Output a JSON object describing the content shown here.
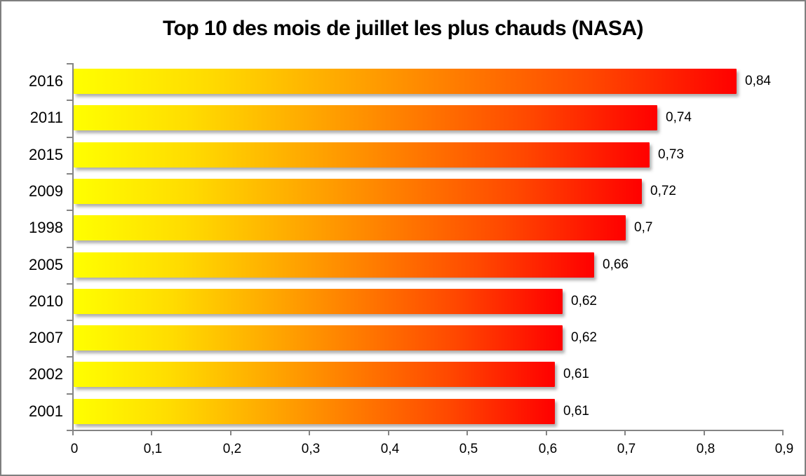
{
  "frame": {
    "border_color": "#7f7f7f",
    "background_color": "#ffffff"
  },
  "chart_data": {
    "type": "bar",
    "orientation": "horizontal",
    "title": "Top 10 des mois de juillet les plus chauds (NASA)",
    "xlabel": "",
    "ylabel": "",
    "categories": [
      "2016",
      "2011",
      "2015",
      "2009",
      "1998",
      "2005",
      "2010",
      "2007",
      "2002",
      "2001"
    ],
    "values": [
      0.84,
      0.74,
      0.73,
      0.72,
      0.7,
      0.66,
      0.62,
      0.62,
      0.61,
      0.61
    ],
    "value_labels": [
      "0,84",
      "0,74",
      "0,73",
      "0,72",
      "0,7",
      "0,66",
      "0,62",
      "0,62",
      "0,61",
      "0,61"
    ],
    "xlim": [
      0,
      0.9
    ],
    "x_tick_values": [
      0,
      0.1,
      0.2,
      0.3,
      0.4,
      0.5,
      0.6,
      0.7,
      0.8,
      0.9
    ],
    "x_tick_labels": [
      "0",
      "0,1",
      "0,2",
      "0,3",
      "0,4",
      "0,5",
      "0,6",
      "0,7",
      "0,8",
      "0,9"
    ],
    "grid": false,
    "legend": null,
    "bar_gradient_stops": [
      "#FFFF00",
      "#FFDC00",
      "#FF9000",
      "#FF4800",
      "#FF0000"
    ],
    "axis_color": "#848484",
    "text_color": "#000000",
    "data_labels_shown": true
  }
}
